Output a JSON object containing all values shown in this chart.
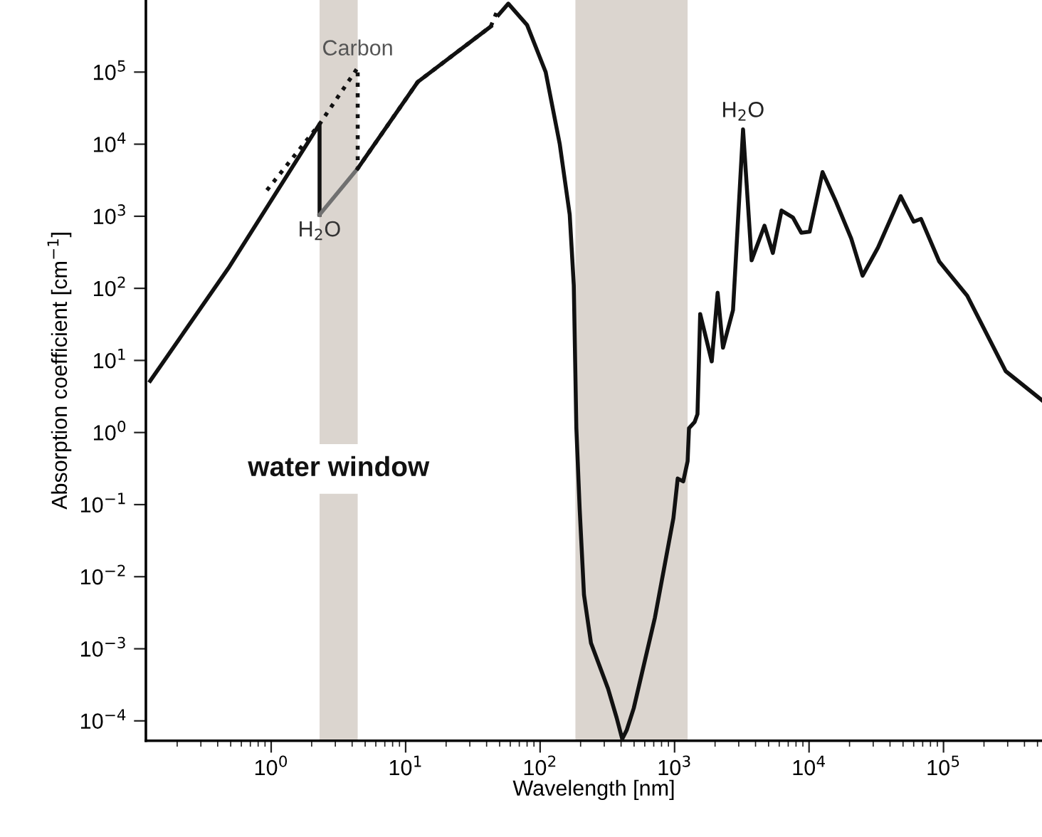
{
  "chart_data": {
    "type": "line",
    "xlabel": "Wavelength [nm]",
    "ylabel": "Absorption coefficient [cm$^{−1}$]",
    "log": "xy",
    "grid": false,
    "marker": "none",
    "xlim": [
      0.117,
      540000
    ],
    "ylim": [
      5.3e-05,
      1000000
    ],
    "xticks": [
      {
        "value": 1,
        "label": "10$^{0}$"
      },
      {
        "value": 10,
        "label": "10$^{1}$"
      },
      {
        "value": 100,
        "label": "10$^{2}$"
      },
      {
        "value": 1000,
        "label": "10$^{3}$"
      },
      {
        "value": 10000,
        "label": "10$^{4}$"
      },
      {
        "value": 100000,
        "label": "10$^{5}$"
      }
    ],
    "yticks": [
      {
        "value": 0.0001,
        "label": "10$^{−4}$"
      },
      {
        "value": 0.001,
        "label": "10$^{−3}$"
      },
      {
        "value": 0.01,
        "label": "10$^{−2}$"
      },
      {
        "value": 0.1,
        "label": "10$^{−1}$"
      },
      {
        "value": 1,
        "label": "10$^{0}$"
      },
      {
        "value": 10,
        "label": "10$^{1}$"
      },
      {
        "value": 100,
        "label": "10$^{2}$"
      },
      {
        "value": 1000,
        "label": "10$^{3}$"
      },
      {
        "value": 10000,
        "label": "10$^{4}$"
      },
      {
        "value": 100000,
        "label": "10$^{5}$"
      }
    ],
    "bands": [
      {
        "axis": "x",
        "from": 2.29,
        "to": 4.4,
        "color": "#dbd5cf"
      },
      {
        "axis": "x",
        "from": 183,
        "to": 1250,
        "color": "#dbd5cf"
      }
    ],
    "series": [
      {
        "color": "#111111",
        "line_style": "dotted",
        "x": [
          0.93,
          2.29,
          4.4,
          4.4,
          12.3,
          43,
          49
        ],
        "values": [
          2300,
          19000,
          115000,
          4600,
          73000,
          430000,
          780000
        ]
      },
      {
        "color": "#111111",
        "line_style": "solid",
        "x": [
          0.126,
          0.48,
          2.29,
          2.29
        ],
        "values": [
          5.2,
          190,
          19000,
          1050
        ]
      },
      {
        "color": "#707070",
        "line_style": "solid",
        "x": [
          2.29,
          4.4
        ],
        "values": [
          1050,
          4600
        ]
      },
      {
        "color": "#111111",
        "line_style": "solid",
        "x": [
          4.4,
          12.3,
          43
        ],
        "values": [
          4600,
          73000,
          430000
        ]
      },
      {
        "color": "#111111",
        "line_style": "solid",
        "x": [
          49,
          58,
          80,
          110,
          140,
          166,
          178,
          186,
          197,
          212,
          239,
          320,
          371,
          408,
          440,
          497,
          714,
          980,
          1055,
          1160,
          1250,
          1280,
          1410,
          1480,
          1550,
          1890,
          2090,
          2290,
          2720,
          3230,
          3740,
          4660,
          5380,
          6240,
          7590,
          8770,
          10100,
          12600,
          15700,
          20600,
          25000,
          32600,
          48000,
          60000,
          68000,
          93000,
          150000,
          290000,
          540000
        ],
        "values": [
          620000,
          890000,
          450000,
          100000,
          10000,
          1050,
          110,
          1.15,
          0.085,
          0.0056,
          0.0012,
          0.00028,
          0.00011,
          5.6e-05,
          7.4e-05,
          0.00015,
          0.0027,
          0.065,
          0.23,
          0.21,
          0.4,
          1.15,
          1.4,
          1.8,
          44,
          9.7,
          87,
          15,
          50,
          16000,
          245,
          740,
          310,
          1200,
          960,
          590,
          610,
          4100,
          1660,
          490,
          150,
          370,
          1900,
          840,
          920,
          235,
          79,
          7.1,
          2.8
        ]
      }
    ],
    "annotations": [
      {
        "text": "Carbon",
        "x": 4.4,
        "y": 115000
      },
      {
        "text": "H$_{2}$O",
        "x": 2.29,
        "y": 1050
      },
      {
        "text": "H$_{2}$O",
        "x": 3230,
        "y": 16000
      },
      "water window"
    ]
  }
}
